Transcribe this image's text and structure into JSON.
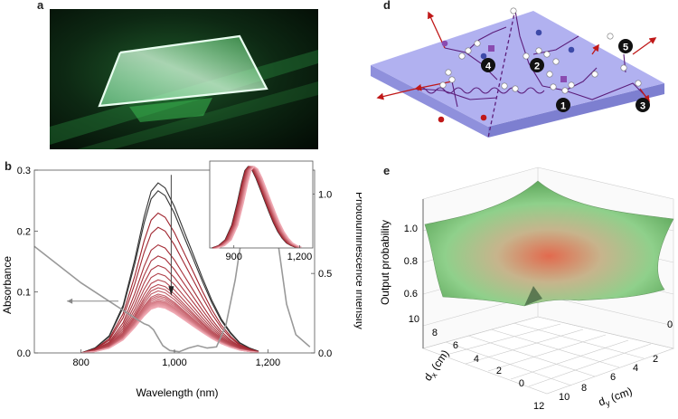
{
  "panels": {
    "a": "a",
    "b": "b",
    "d": "d",
    "e": "e"
  },
  "panel_d": {
    "site_labels": [
      "1",
      "2",
      "3",
      "4",
      "5"
    ]
  },
  "chart_data": [
    {
      "type": "line",
      "panel": "b",
      "xlabel": "Wavelength (nm)",
      "ylabel": "Absorbance",
      "y2label": "Photoluminescence intensity",
      "xlim": [
        700,
        1300
      ],
      "ylim": [
        0,
        0.3
      ],
      "y2lim": [
        0,
        1.15
      ],
      "x_ticks": [
        "800",
        "1,000",
        "1,200"
      ],
      "y_ticks": [
        "0.0",
        "0.1",
        "0.2",
        "0.3"
      ],
      "y2_ticks": [
        "0.0",
        "0.5",
        "1.0"
      ],
      "absorbance": {
        "x": [
          700,
          750,
          800,
          850,
          880,
          900,
          920,
          935,
          945,
          955,
          965,
          975,
          990,
          1010,
          1030,
          1050,
          1070,
          1090,
          1110,
          1130,
          1150,
          1165,
          1180,
          1200,
          1220,
          1240,
          1260,
          1290
        ],
        "y": [
          0.175,
          0.145,
          0.115,
          0.09,
          0.075,
          0.065,
          0.055,
          0.048,
          0.045,
          0.038,
          0.025,
          0.012,
          0.004,
          0.002,
          0.008,
          0.012,
          0.008,
          0.01,
          0.045,
          0.12,
          0.22,
          0.27,
          0.29,
          0.275,
          0.19,
          0.08,
          0.03,
          0.01
        ]
      },
      "pl_spectra": {
        "x": [
          800,
          830,
          860,
          890,
          915,
          935,
          950,
          965,
          980,
          1000,
          1020,
          1040,
          1060,
          1080,
          1100,
          1120,
          1140,
          1160,
          1180
        ],
        "shape": [
          0.0,
          0.03,
          0.1,
          0.28,
          0.55,
          0.8,
          0.95,
          1.0,
          0.97,
          0.86,
          0.72,
          0.58,
          0.44,
          0.31,
          0.2,
          0.12,
          0.06,
          0.03,
          0.01
        ],
        "peaks": [
          1.07,
          1.02,
          0.88,
          0.79,
          0.68,
          0.61,
          0.55,
          0.5,
          0.46,
          0.43,
          0.41,
          0.39,
          0.37,
          0.36,
          0.35,
          0.34,
          0.33,
          0.325,
          0.32,
          0.315,
          0.31,
          0.305,
          0.3,
          0.295,
          0.29
        ]
      },
      "inset": {
        "x_ticks": [
          "900",
          "1,200"
        ],
        "xlim": [
          790,
          1260
        ]
      }
    },
    {
      "type": "surface",
      "panel": "e",
      "zlabel": "Output probability",
      "xlabel": "d_x (cm)",
      "ylabel": "d_y (cm)",
      "z_ticks": [
        "0.6",
        "0.8",
        "1.0"
      ],
      "x_ticks": [
        "0",
        "2",
        "4",
        "6",
        "8",
        "10"
      ],
      "y_ticks": [
        "0",
        "2",
        "4",
        "6",
        "8",
        "10",
        "12"
      ],
      "zlim": [
        0.5,
        1.0
      ],
      "min_value": 0.58,
      "corner_values": [
        0.98,
        0.95,
        0.88,
        0.85
      ]
    }
  ],
  "colors": {
    "absorbance": "#999999",
    "pl_dark": "#333333",
    "pl_red": "#c0202a",
    "slab": "#9b9be8",
    "photon": "#b01010",
    "path": "#5b1d7a"
  }
}
